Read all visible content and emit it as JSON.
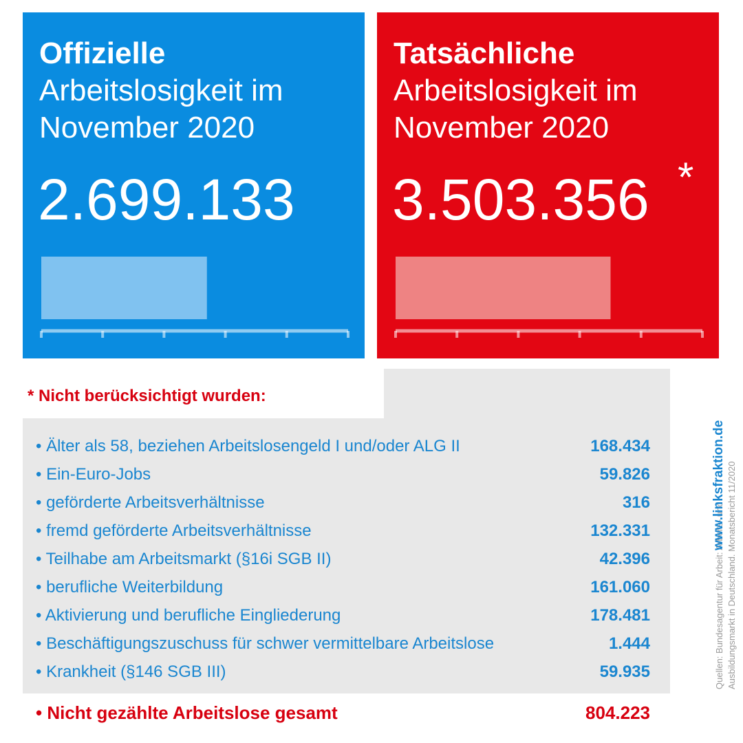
{
  "colors": {
    "official": "#0a8ce0",
    "official_bar": "#80c2f0",
    "actual": "#e30613",
    "actual_bar": "#ee8383",
    "axis": "#ffffff"
  },
  "chart_data": [
    {
      "type": "bar",
      "orientation": "horizontal",
      "title_bold": "Offizielle",
      "title_line1": "Arbeitslosigkeit im",
      "title_line2": "November 2020",
      "value_label": "2.699.133",
      "values": [
        2699133
      ],
      "xlim": [
        0,
        5000000
      ],
      "ticks": [
        0,
        1000000,
        2000000,
        3000000,
        4000000,
        5000000
      ]
    },
    {
      "type": "bar",
      "orientation": "horizontal",
      "title_bold": "Tatsächliche",
      "title_line1": "Arbeitslosigkeit im",
      "title_line2": "November 2020",
      "value_label": "3.503.356",
      "asterisk": "*",
      "values": [
        3503356
      ],
      "xlim": [
        0,
        5000000
      ],
      "ticks": [
        0,
        1000000,
        2000000,
        3000000,
        4000000,
        5000000
      ]
    }
  ],
  "footnote": {
    "title": "* Nicht berücksichtigt wurden:",
    "items": [
      {
        "label": "• Älter als 58, beziehen Arbeitslosengeld I und/oder ALG II",
        "value": "168.434"
      },
      {
        "label": "• Ein-Euro-Jobs",
        "value": "59.826"
      },
      {
        "label": "• geförderte Arbeitsverhältnisse",
        "value": "316"
      },
      {
        "label": "• fremd geförderte Arbeitsverhältnisse",
        "value": "132.331"
      },
      {
        "label": "• Teilhabe am Arbeitsmarkt (§16i SGB II)",
        "value": "42.396"
      },
      {
        "label": "• berufliche Weiterbildung",
        "value": "161.060"
      },
      {
        "label": "• Aktivierung und berufliche Eingliederung",
        "value": "178.481"
      },
      {
        "label": "• Beschäftigungszuschuss für schwer vermittelbare Arbeitslose",
        "value": "1.444"
      },
      {
        "label": "• Krankheit (§146 SGB III)",
        "value": "59.935"
      }
    ],
    "total_label": "• Nicht gezählte Arbeitslose gesamt",
    "total_value": "804.223"
  },
  "sources": {
    "line1": "Quellen: Bundesagentur für Arbeit: Arbeits- und",
    "line2": "Ausbildungsmarkt in Deutschland. Monatsbericht 11/2020"
  },
  "website": "www.linksfraktion.de"
}
